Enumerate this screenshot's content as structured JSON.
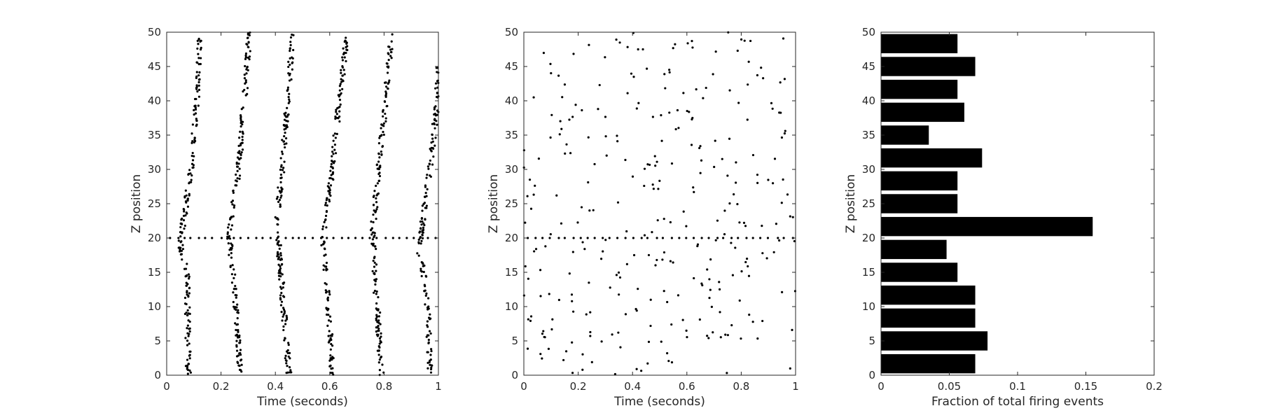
{
  "chart_data": [
    {
      "type": "scatter",
      "xlabel": "Time (seconds)",
      "ylabel": "Z position",
      "xlim": [
        0,
        1
      ],
      "ylim": [
        0,
        50
      ],
      "xticks": [
        "0",
        "0.2",
        "0.4",
        "0.6",
        "0.8",
        "1"
      ],
      "yticks": [
        "0",
        "5",
        "10",
        "15",
        "20",
        "25",
        "30",
        "35",
        "40",
        "45",
        "50"
      ],
      "grid": false,
      "marker_color": "#000000",
      "waves": [
        {
          "anchor": [
            [
              0,
              0.08
            ],
            [
              15,
              0.075
            ],
            [
              19,
              0.05
            ],
            [
              20,
              0.05
            ],
            [
              22,
              0.06
            ],
            [
              30,
              0.09
            ],
            [
              40,
              0.11
            ],
            [
              50,
              0.125
            ]
          ],
          "count": 185
        },
        {
          "anchor": [
            [
              0,
              0.27
            ],
            [
              10,
              0.255
            ],
            [
              15,
              0.245
            ],
            [
              20,
              0.23
            ],
            [
              22,
              0.235
            ],
            [
              30,
              0.265
            ],
            [
              40,
              0.285
            ],
            [
              50,
              0.305
            ]
          ],
          "count": 185
        },
        {
          "anchor": [
            [
              0,
              0.45
            ],
            [
              10,
              0.43
            ],
            [
              15,
              0.42
            ],
            [
              20,
              0.41
            ],
            [
              22,
              0.405
            ],
            [
              30,
              0.425
            ],
            [
              40,
              0.445
            ],
            [
              50,
              0.465
            ]
          ],
          "count": 185
        },
        {
          "anchor": [
            [
              0,
              0.61
            ],
            [
              10,
              0.595
            ],
            [
              15,
              0.585
            ],
            [
              20,
              0.575
            ],
            [
              22,
              0.58
            ],
            [
              30,
              0.61
            ],
            [
              40,
              0.635
            ],
            [
              50,
              0.665
            ]
          ],
          "count": 185
        },
        {
          "anchor": [
            [
              0,
              0.79
            ],
            [
              10,
              0.775
            ],
            [
              15,
              0.765
            ],
            [
              20,
              0.76
            ],
            [
              22,
              0.76
            ],
            [
              30,
              0.78
            ],
            [
              40,
              0.805
            ],
            [
              50,
              0.83
            ]
          ],
          "count": 185
        },
        {
          "anchor": [
            [
              0,
              0.97
            ],
            [
              10,
              0.96
            ],
            [
              15,
              0.945
            ],
            [
              18,
              0.93
            ],
            [
              20,
              0.935
            ],
            [
              25,
              0.95
            ],
            [
              30,
              0.97
            ],
            [
              40,
              0.995
            ],
            [
              45,
              1.0
            ]
          ],
          "count": 165
        }
      ],
      "row_z": 20,
      "row_points": 38,
      "seed": 7
    },
    {
      "type": "scatter",
      "xlabel": "Time (seconds)",
      "ylabel": "Z position",
      "xlim": [
        0,
        1
      ],
      "ylim": [
        0,
        50
      ],
      "xticks": [
        "0",
        "0.2",
        "0.4",
        "0.6",
        "0.8",
        "1"
      ],
      "yticks": [
        "0",
        "5",
        "10",
        "15",
        "20",
        "25",
        "30",
        "35",
        "40",
        "45",
        "50"
      ],
      "grid": false,
      "marker_color": "#000000",
      "random_points": 300,
      "row_z": 20,
      "row_points": 36,
      "seed": 21
    },
    {
      "type": "bar",
      "orientation": "horizontal",
      "xlabel": "Fraction of total firing events",
      "ylabel": "Z position",
      "xlim": [
        0,
        0.2
      ],
      "ylim": [
        0,
        50
      ],
      "xticks": [
        "0",
        "0.05",
        "0.1",
        "0.15",
        "0.2"
      ],
      "yticks": [
        "0",
        "5",
        "10",
        "15",
        "20",
        "25",
        "30",
        "35",
        "40",
        "45",
        "50"
      ],
      "grid": false,
      "bar_color": "#000000",
      "bin_width": 3.33,
      "bars": [
        {
          "z_center": 1.67,
          "value": 0.069
        },
        {
          "z_center": 5.0,
          "value": 0.078
        },
        {
          "z_center": 8.33,
          "value": 0.069
        },
        {
          "z_center": 11.67,
          "value": 0.069
        },
        {
          "z_center": 15.0,
          "value": 0.056
        },
        {
          "z_center": 18.33,
          "value": 0.048
        },
        {
          "z_center": 21.67,
          "value": 0.155
        },
        {
          "z_center": 25.0,
          "value": 0.056
        },
        {
          "z_center": 28.33,
          "value": 0.056
        },
        {
          "z_center": 31.67,
          "value": 0.074
        },
        {
          "z_center": 35.0,
          "value": 0.035
        },
        {
          "z_center": 38.33,
          "value": 0.061
        },
        {
          "z_center": 41.67,
          "value": 0.056
        },
        {
          "z_center": 45.0,
          "value": 0.069
        },
        {
          "z_center": 48.33,
          "value": 0.056
        }
      ]
    }
  ]
}
